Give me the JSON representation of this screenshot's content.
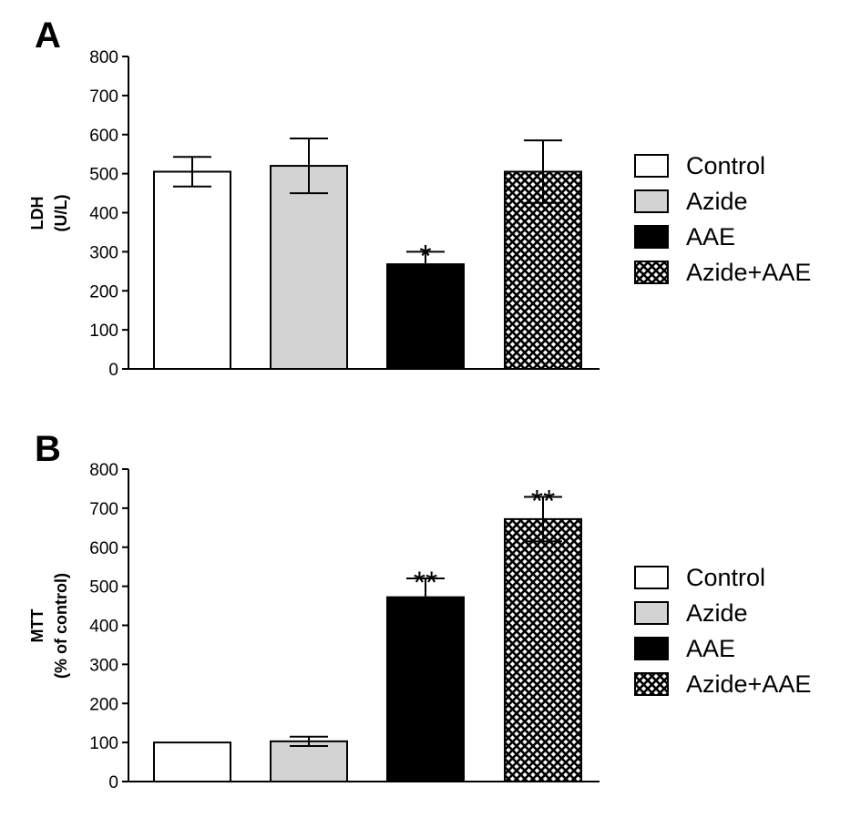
{
  "colors": {
    "Control": "#ffffff",
    "Azide": "#d3d3d3",
    "AAE": "#000000",
    "Azide+AAE": "crosshatch"
  },
  "chart_data": [
    {
      "panel": "A",
      "type": "bar",
      "title": "",
      "xlabel": "",
      "ylabel": [
        "LDH",
        "(U/L)"
      ],
      "ylim": [
        0,
        800
      ],
      "yticks": [
        0,
        100,
        200,
        300,
        400,
        500,
        600,
        700,
        800
      ],
      "categories": [
        "Control",
        "Azide",
        "AAE",
        "Azide+AAE"
      ],
      "values": [
        505,
        520,
        268,
        505
      ],
      "errors": [
        38,
        70,
        32,
        80
      ],
      "significance": [
        "",
        "",
        "*",
        ""
      ],
      "legend": [
        "Control",
        "Azide",
        "AAE",
        "Azide+AAE"
      ],
      "legend_position": "right",
      "grid": false
    },
    {
      "panel": "B",
      "type": "bar",
      "title": "",
      "xlabel": "",
      "ylabel": [
        "MTT",
        "(% of control)"
      ],
      "ylim": [
        0,
        800
      ],
      "yticks": [
        0,
        100,
        200,
        300,
        400,
        500,
        600,
        700,
        800
      ],
      "categories": [
        "Control",
        "Azide",
        "AAE",
        "Azide+AAE"
      ],
      "values": [
        100,
        103,
        472,
        672
      ],
      "errors": [
        0,
        12,
        48,
        57
      ],
      "significance": [
        "",
        "",
        "**",
        "**"
      ],
      "legend": [
        "Control",
        "Azide",
        "AAE",
        "Azide+AAE"
      ],
      "legend_position": "right",
      "grid": false
    }
  ]
}
